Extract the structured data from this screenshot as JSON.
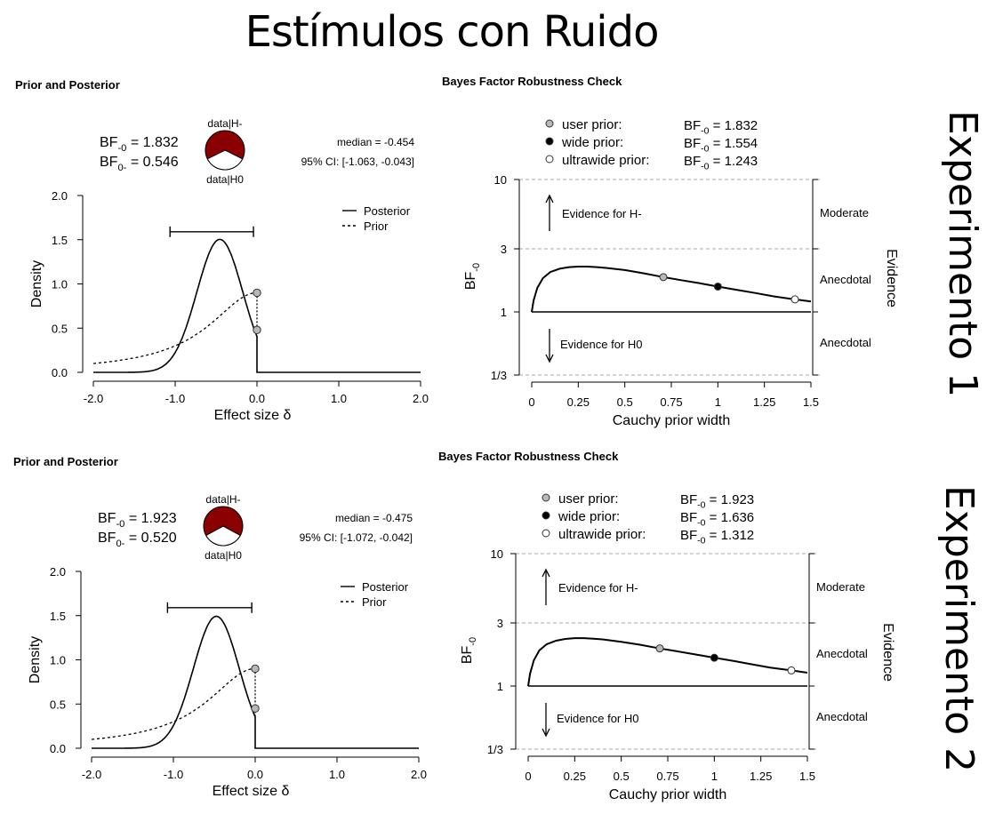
{
  "page_title": "Estímulos con Ruido",
  "experiments": [
    {
      "label": "Experimento 1",
      "left_title": "Prior and Posterior",
      "right_title": "Bayes Factor Robustness Check",
      "pie": {
        "top_label": "data|H-",
        "bottom_label": "data|H0",
        "h_minus_color": "#8b0000",
        "h0_color": "#ffffff"
      },
      "bf_lines": [
        {
          "text": "BF",
          "sub": "-0",
          "value": " = 1.832"
        },
        {
          "text": "BF",
          "sub": "0-",
          "value": " = 0.546"
        }
      ],
      "median_text": "median = -0.454",
      "ci_text": "95% CI: [-1.063, -0.043]",
      "robust_legend": [
        {
          "name": "user prior:",
          "bf": "BF",
          "sub": "-0",
          "value": " = 1.832",
          "fill": "#b8b8b8"
        },
        {
          "name": "wide prior:",
          "bf": "BF",
          "sub": "-0",
          "value": " = 1.554",
          "fill": "#000000"
        },
        {
          "name": "ultrawide prior:",
          "bf": "BF",
          "sub": "-0",
          "value": " = 1.243",
          "fill": "#ffffff"
        }
      ]
    },
    {
      "label": "Experimento 2",
      "left_title": "Prior and Posterior",
      "right_title": "Bayes Factor Robustness Check",
      "pie": {
        "top_label": "data|H-",
        "bottom_label": "data|H0",
        "h_minus_color": "#8b0000",
        "h0_color": "#ffffff"
      },
      "bf_lines": [
        {
          "text": "BF",
          "sub": "-0",
          "value": " = 1.923"
        },
        {
          "text": "BF",
          "sub": "0-",
          "value": " = 0.520"
        }
      ],
      "median_text": "median = -0.475",
      "ci_text": "95% CI: [-1.072, -0.042]",
      "robust_legend": [
        {
          "name": "user prior:",
          "bf": "BF",
          "sub": "-0",
          "value": " = 1.923",
          "fill": "#b8b8b8"
        },
        {
          "name": "wide prior:",
          "bf": "BF",
          "sub": "-0",
          "value": " = 1.636",
          "fill": "#000000"
        },
        {
          "name": "ultrawide prior:",
          "bf": "BF",
          "sub": "-0",
          "value": " = 1.312",
          "fill": "#ffffff"
        }
      ]
    }
  ],
  "chart_data": [
    {
      "type": "line",
      "chart": "prior_posterior",
      "experiment": 1,
      "title": "Prior and Posterior",
      "xlabel": "Effect size δ",
      "ylabel": "Density",
      "xlim": [
        -2.0,
        2.0
      ],
      "ylim": [
        0.0,
        2.0
      ],
      "xticks": [
        "-2.0",
        "-1.0",
        "0.0",
        "1.0",
        "2.0"
      ],
      "yticks": [
        "0.0",
        "0.5",
        "1.0",
        "1.5",
        "2.0"
      ],
      "legend": [
        "Posterior",
        "Prior"
      ],
      "posterior": {
        "mean": -0.454,
        "sd": 0.28,
        "truncate_at": 0.0
      },
      "prior": {
        "type": "half-cauchy",
        "scale": 0.707,
        "direction": "negative"
      },
      "ci": [
        -1.063,
        -0.043
      ],
      "ci_bar_height": 1.59,
      "points": [
        {
          "x": 0.0,
          "y": 0.9,
          "fill": "#b8b8b8"
        },
        {
          "x": 0.0,
          "y": 0.48,
          "fill": "#b8b8b8"
        }
      ]
    },
    {
      "type": "line",
      "chart": "robustness",
      "experiment": 1,
      "title": "Bayes Factor Robustness Check",
      "xlabel": "Cauchy prior width",
      "ylabel": "BF-0",
      "xlim": [
        0,
        1.5
      ],
      "xticks": [
        "0",
        "0.25",
        "0.5",
        "0.75",
        "1",
        "1.25",
        "1.5"
      ],
      "y_scale": "log",
      "yticks": [
        "1/3",
        "1",
        "3",
        "10"
      ],
      "ytick_values": [
        0.3333,
        1,
        3,
        10
      ],
      "right_axis_label": "Evidence",
      "evidence_labels": [
        "Moderate",
        "Anecdotal",
        "Anecdotal"
      ],
      "evidence_for_h_minus": "Evidence for H-",
      "evidence_for_h0": "Evidence for H0",
      "curve": {
        "x": [
          0,
          0.01,
          0.03,
          0.06,
          0.1,
          0.15,
          0.2,
          0.25,
          0.3,
          0.35,
          0.4,
          0.5,
          0.6,
          0.707,
          0.8,
          0.9,
          1.0,
          1.1,
          1.2,
          1.3,
          1.414,
          1.5
        ],
        "y": [
          1.0,
          1.22,
          1.52,
          1.8,
          2.0,
          2.12,
          2.18,
          2.2,
          2.2,
          2.18,
          2.15,
          2.07,
          1.96,
          1.832,
          1.74,
          1.65,
          1.554,
          1.47,
          1.39,
          1.31,
          1.243,
          1.2
        ]
      },
      "points": [
        {
          "x": 0.707,
          "y": 1.832,
          "fill": "#b8b8b8"
        },
        {
          "x": 1.0,
          "y": 1.554,
          "fill": "#000000"
        },
        {
          "x": 1.414,
          "y": 1.243,
          "fill": "#ffffff"
        }
      ]
    },
    {
      "type": "line",
      "chart": "prior_posterior",
      "experiment": 2,
      "title": "Prior and Posterior",
      "xlabel": "Effect size δ",
      "ylabel": "Density",
      "xlim": [
        -2.0,
        2.0
      ],
      "ylim": [
        0.0,
        2.0
      ],
      "xticks": [
        "-2.0",
        "-1.0",
        "0.0",
        "1.0",
        "2.0"
      ],
      "yticks": [
        "0.0",
        "0.5",
        "1.0",
        "1.5",
        "2.0"
      ],
      "legend": [
        "Posterior",
        "Prior"
      ],
      "posterior": {
        "mean": -0.475,
        "sd": 0.28,
        "truncate_at": 0.0
      },
      "prior": {
        "type": "half-cauchy",
        "scale": 0.707,
        "direction": "negative"
      },
      "ci": [
        -1.072,
        -0.042
      ],
      "ci_bar_height": 1.59,
      "points": [
        {
          "x": 0.0,
          "y": 0.9,
          "fill": "#b8b8b8"
        },
        {
          "x": 0.0,
          "y": 0.45,
          "fill": "#b8b8b8"
        }
      ]
    },
    {
      "type": "line",
      "chart": "robustness",
      "experiment": 2,
      "title": "Bayes Factor Robustness Check",
      "xlabel": "Cauchy prior width",
      "ylabel": "BF-0",
      "xlim": [
        0,
        1.5
      ],
      "xticks": [
        "0",
        "0.25",
        "0.5",
        "0.75",
        "1",
        "1.25",
        "1.5"
      ],
      "y_scale": "log",
      "yticks": [
        "1/3",
        "1",
        "3",
        "10"
      ],
      "ytick_values": [
        0.3333,
        1,
        3,
        10
      ],
      "right_axis_label": "Evidence",
      "evidence_labels": [
        "Moderate",
        "Anecdotal",
        "Anecdotal"
      ],
      "evidence_for_h_minus": "Evidence for H-",
      "evidence_for_h0": "Evidence for H0",
      "curve": {
        "x": [
          0,
          0.01,
          0.03,
          0.06,
          0.1,
          0.15,
          0.2,
          0.25,
          0.3,
          0.35,
          0.4,
          0.5,
          0.6,
          0.707,
          0.8,
          0.9,
          1.0,
          1.1,
          1.2,
          1.3,
          1.414,
          1.5
        ],
        "y": [
          1.0,
          1.24,
          1.56,
          1.86,
          2.07,
          2.2,
          2.27,
          2.3,
          2.3,
          2.28,
          2.25,
          2.16,
          2.05,
          1.923,
          1.83,
          1.73,
          1.636,
          1.55,
          1.46,
          1.38,
          1.312,
          1.26
        ]
      },
      "points": [
        {
          "x": 0.707,
          "y": 1.923,
          "fill": "#b8b8b8"
        },
        {
          "x": 1.0,
          "y": 1.636,
          "fill": "#000000"
        },
        {
          "x": 1.414,
          "y": 1.312,
          "fill": "#ffffff"
        }
      ]
    }
  ]
}
